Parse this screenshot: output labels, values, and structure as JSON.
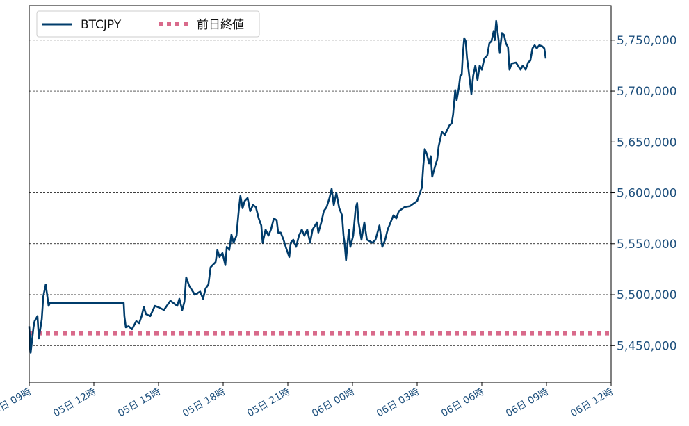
{
  "chart_data": {
    "type": "line",
    "title": "",
    "xlabel": "",
    "ylabel": "",
    "xlim": [
      "05 09:00",
      "06 12:00"
    ],
    "ylim": [
      5414000,
      5784000
    ],
    "grid": "horizontal dashed",
    "legend_position": "top-left",
    "y_axis_side": "right",
    "x_tick_labels": [
      "05日 09時",
      "05日 12時",
      "05日 15時",
      "05日 18時",
      "05日 21時",
      "06日 00時",
      "06日 03時",
      "06日 06時",
      "06日 09時",
      "06日 12時"
    ],
    "x_ticks": [
      "05 09:00",
      "05 12:00",
      "05 15:00",
      "05 18:00",
      "05 21:00",
      "06 00:00",
      "06 03:00",
      "06 06:00",
      "06 09:00",
      "06 12:00"
    ],
    "y_ticks": [
      5450000,
      5500000,
      5550000,
      5600000,
      5650000,
      5700000,
      5750000
    ],
    "y_tick_labels": [
      "5,450,000",
      "5,500,000",
      "5,550,000",
      "5,600,000",
      "5,650,000",
      "5,700,000",
      "5,750,000"
    ],
    "colors": {
      "series": "#003c6b",
      "reference": "#d96a8b",
      "tick_text": "#1d4f7c"
    },
    "reference_line": {
      "name": "前日終値",
      "value": 5462000,
      "style": "dotted"
    },
    "series": [
      {
        "name": "BTCJPY",
        "points": [
          [
            "05 09:00",
            5469000
          ],
          [
            "05 09:04",
            5443000
          ],
          [
            "05 09:12",
            5468000
          ],
          [
            "05 09:15",
            5474000
          ],
          [
            "05 09:23",
            5479000
          ],
          [
            "05 09:27",
            5457000
          ],
          [
            "05 09:35",
            5476000
          ],
          [
            "05 09:39",
            5498000
          ],
          [
            "05 09:46",
            5510000
          ],
          [
            "05 09:54",
            5489000
          ],
          [
            "05 09:58",
            5492000
          ],
          [
            "05 13:23",
            5492000
          ],
          [
            "05 13:25",
            5479000
          ],
          [
            "05 13:29",
            5468000
          ],
          [
            "05 13:37",
            5469000
          ],
          [
            "05 13:46",
            5466000
          ],
          [
            "05 13:58",
            5474000
          ],
          [
            "05 14:06",
            5472000
          ],
          [
            "05 14:13",
            5479000
          ],
          [
            "05 14:19",
            5488000
          ],
          [
            "05 14:25",
            5481000
          ],
          [
            "05 14:37",
            5479000
          ],
          [
            "05 14:50",
            5489000
          ],
          [
            "05 15:04",
            5487000
          ],
          [
            "05 15:15",
            5485000
          ],
          [
            "05 15:23",
            5489000
          ],
          [
            "05 15:33",
            5494000
          ],
          [
            "05 15:52",
            5489000
          ],
          [
            "05 15:58",
            5496000
          ],
          [
            "05 16:06",
            5485000
          ],
          [
            "05 16:12",
            5493000
          ],
          [
            "05 16:17",
            5517000
          ],
          [
            "05 16:25",
            5509000
          ],
          [
            "05 16:41",
            5500000
          ],
          [
            "05 16:56",
            5503000
          ],
          [
            "05 17:04",
            5496000
          ],
          [
            "05 17:11",
            5506000
          ],
          [
            "05 17:19",
            5510000
          ],
          [
            "05 17:25",
            5527000
          ],
          [
            "05 17:39",
            5532000
          ],
          [
            "05 17:44",
            5544000
          ],
          [
            "05 17:50",
            5537000
          ],
          [
            "05 17:58",
            5541000
          ],
          [
            "05 18:06",
            5529000
          ],
          [
            "05 18:10",
            5547000
          ],
          [
            "05 18:17",
            5544000
          ],
          [
            "05 18:23",
            5559000
          ],
          [
            "05 18:29",
            5551000
          ],
          [
            "05 18:37",
            5558000
          ],
          [
            "05 18:44",
            5585000
          ],
          [
            "05 18:48",
            5597000
          ],
          [
            "05 18:54",
            5585000
          ],
          [
            "05 19:00",
            5592000
          ],
          [
            "05 19:08",
            5595000
          ],
          [
            "05 19:15",
            5582000
          ],
          [
            "05 19:23",
            5588000
          ],
          [
            "05 19:31",
            5586000
          ],
          [
            "05 19:39",
            5575000
          ],
          [
            "05 19:46",
            5568000
          ],
          [
            "05 19:50",
            5551000
          ],
          [
            "05 19:58",
            5564000
          ],
          [
            "05 20:06",
            5558000
          ],
          [
            "05 20:13",
            5564000
          ],
          [
            "05 20:21",
            5575000
          ],
          [
            "05 20:29",
            5573000
          ],
          [
            "05 20:33",
            5561000
          ],
          [
            "05 20:40",
            5561000
          ],
          [
            "05 20:48",
            5554000
          ],
          [
            "05 20:56",
            5545000
          ],
          [
            "05 21:04",
            5537000
          ],
          [
            "05 21:08",
            5551000
          ],
          [
            "05 21:15",
            5554000
          ],
          [
            "05 21:23",
            5547000
          ],
          [
            "05 21:31",
            5558000
          ],
          [
            "05 21:39",
            5564000
          ],
          [
            "05 21:46",
            5558000
          ],
          [
            "05 21:54",
            5564000
          ],
          [
            "05 22:02",
            5551000
          ],
          [
            "05 22:09",
            5564000
          ],
          [
            "05 22:21",
            5571000
          ],
          [
            "05 22:25",
            5561000
          ],
          [
            "05 22:33",
            5571000
          ],
          [
            "05 22:40",
            5582000
          ],
          [
            "05 22:48",
            5586000
          ],
          [
            "05 22:56",
            5595000
          ],
          [
            "05 23:02",
            5604000
          ],
          [
            "05 23:08",
            5588000
          ],
          [
            "05 23:15",
            5600000
          ],
          [
            "05 23:23",
            5585000
          ],
          [
            "05 23:31",
            5578000
          ],
          [
            "05 23:35",
            5558000
          ],
          [
            "05 23:38",
            5551000
          ],
          [
            "05 23:42",
            5534000
          ],
          [
            "05 23:50",
            5564000
          ],
          [
            "05 23:54",
            5547000
          ],
          [
            "06 00:02",
            5558000
          ],
          [
            "06 00:09",
            5585000
          ],
          [
            "06 00:13",
            5590000
          ],
          [
            "06 00:17",
            5571000
          ],
          [
            "06 00:25",
            5554000
          ],
          [
            "06 00:33",
            5571000
          ],
          [
            "06 00:40",
            5554000
          ],
          [
            "06 00:56",
            5551000
          ],
          [
            "06 01:04",
            5554000
          ],
          [
            "06 01:15",
            5568000
          ],
          [
            "06 01:23",
            5547000
          ],
          [
            "06 01:31",
            5554000
          ],
          [
            "06 01:38",
            5564000
          ],
          [
            "06 01:46",
            5571000
          ],
          [
            "06 01:54",
            5578000
          ],
          [
            "06 02:02",
            5575000
          ],
          [
            "06 02:09",
            5582000
          ],
          [
            "06 02:25",
            5586000
          ],
          [
            "06 02:40",
            5587000
          ],
          [
            "06 03:00",
            5592000
          ],
          [
            "06 03:07",
            5599000
          ],
          [
            "06 03:13",
            5605000
          ],
          [
            "06 03:17",
            5626000
          ],
          [
            "06 03:21",
            5643000
          ],
          [
            "06 03:27",
            5638000
          ],
          [
            "06 03:33",
            5629000
          ],
          [
            "06 03:38",
            5636000
          ],
          [
            "06 03:42",
            5616000
          ],
          [
            "06 03:50",
            5626000
          ],
          [
            "06 03:56",
            5633000
          ],
          [
            "06 04:00",
            5646000
          ],
          [
            "06 04:09",
            5660000
          ],
          [
            "06 04:17",
            5657000
          ],
          [
            "06 04:31",
            5667000
          ],
          [
            "06 04:36",
            5668000
          ],
          [
            "06 04:40",
            5677000
          ],
          [
            "06 04:46",
            5701000
          ],
          [
            "06 04:50",
            5691000
          ],
          [
            "06 04:56",
            5703000
          ],
          [
            "06 05:00",
            5715000
          ],
          [
            "06 05:04",
            5716000
          ],
          [
            "06 05:07",
            5735000
          ],
          [
            "06 05:11",
            5752000
          ],
          [
            "06 05:15",
            5749000
          ],
          [
            "06 05:19",
            5732000
          ],
          [
            "06 05:23",
            5721000
          ],
          [
            "06 05:31",
            5697000
          ],
          [
            "06 05:36",
            5715000
          ],
          [
            "06 05:42",
            5725000
          ],
          [
            "06 05:48",
            5711000
          ],
          [
            "06 05:54",
            5725000
          ],
          [
            "06 06:00",
            5721000
          ],
          [
            "06 06:07",
            5732000
          ],
          [
            "06 06:15",
            5735000
          ],
          [
            "06 06:21",
            5747000
          ],
          [
            "06 06:27",
            5749000
          ],
          [
            "06 06:33",
            5759000
          ],
          [
            "06 06:36",
            5750000
          ],
          [
            "06 06:40",
            5769000
          ],
          [
            "06 06:46",
            5752000
          ],
          [
            "06 06:50",
            5738000
          ],
          [
            "06 06:56",
            5757000
          ],
          [
            "06 07:02",
            5755000
          ],
          [
            "06 07:07",
            5747000
          ],
          [
            "06 07:13",
            5743000
          ],
          [
            "06 07:17",
            5721000
          ],
          [
            "06 07:23",
            5727000
          ],
          [
            "06 07:35",
            5728000
          ],
          [
            "06 07:48",
            5721000
          ],
          [
            "06 07:54",
            5725000
          ],
          [
            "06 08:02",
            5721000
          ],
          [
            "06 08:09",
            5728000
          ],
          [
            "06 08:15",
            5730000
          ],
          [
            "06 08:21",
            5742000
          ],
          [
            "06 08:27",
            5745000
          ],
          [
            "06 08:33",
            5742000
          ],
          [
            "06 08:40",
            5745000
          ],
          [
            "06 08:48",
            5744000
          ],
          [
            "06 08:54",
            5742000
          ],
          [
            "06 08:58",
            5732000
          ]
        ]
      }
    ],
    "legend": [
      "BTCJPY",
      "前日終値"
    ]
  }
}
